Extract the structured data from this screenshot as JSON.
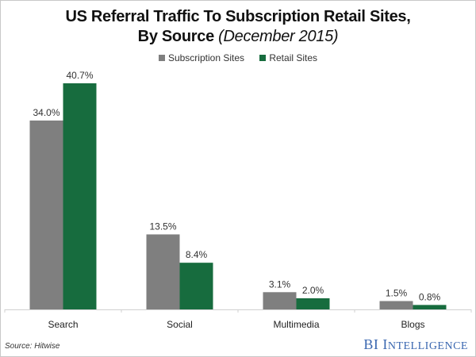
{
  "chart_data": {
    "type": "bar",
    "title": "US Referral Traffic To Subscription Retail Sites,",
    "title_line2": "By Source",
    "subtitle": "(December 2015)",
    "xlabel": "",
    "ylabel": "",
    "ylim": [
      0,
      42
    ],
    "grid": false,
    "legend_position": "top-center",
    "categories": [
      "Search",
      "Social",
      "Multimedia",
      "Blogs"
    ],
    "series": [
      {
        "name": "Subscription Sites",
        "color": "#7f7f7f",
        "values": [
          34.0,
          13.5,
          3.1,
          1.5
        ],
        "labels": [
          "34.0%",
          "13.5%",
          "3.1%",
          "1.5%"
        ]
      },
      {
        "name": "Retail Sites",
        "color": "#176c3e",
        "values": [
          40.7,
          8.4,
          2.0,
          0.8
        ],
        "labels": [
          "40.7%",
          "8.4%",
          "2.0%",
          "0.8%"
        ]
      }
    ]
  },
  "footer": {
    "source": "Source: Hitwise",
    "brand_first": "BI",
    "brand_second_initial": "I",
    "brand_second_rest": "NTELLIGENCE"
  }
}
